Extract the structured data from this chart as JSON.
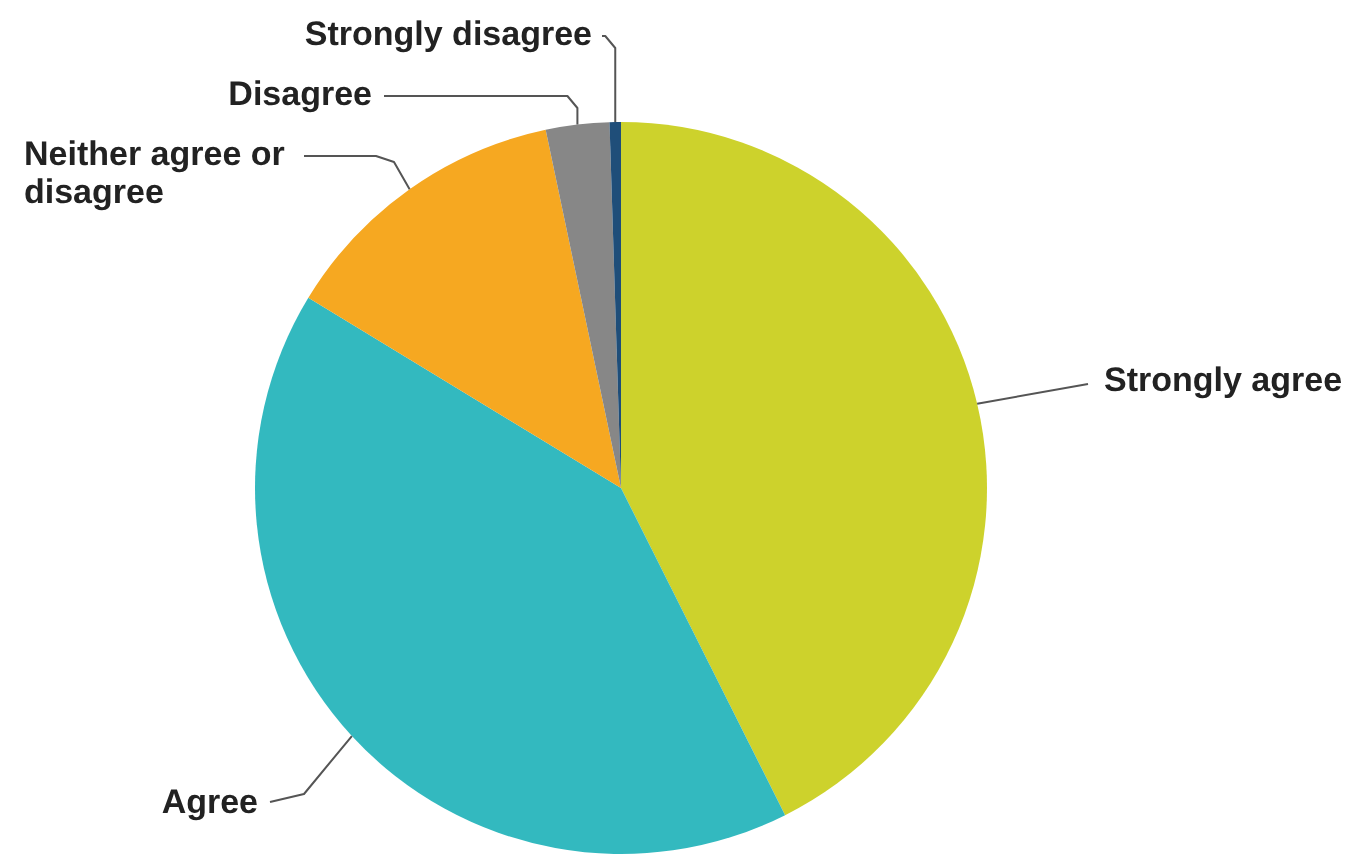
{
  "chart_data": {
    "type": "pie",
    "categories": [
      "Strongly agree",
      "Agree",
      "Neither agree or disagree",
      "Disagree",
      "Strongly disagree"
    ],
    "values": [
      42.6,
      41.1,
      13.0,
      2.8,
      0.5
    ],
    "colors": [
      "#cdd22c",
      "#33b9bf",
      "#f6a821",
      "#878787",
      "#1f4e79"
    ]
  }
}
